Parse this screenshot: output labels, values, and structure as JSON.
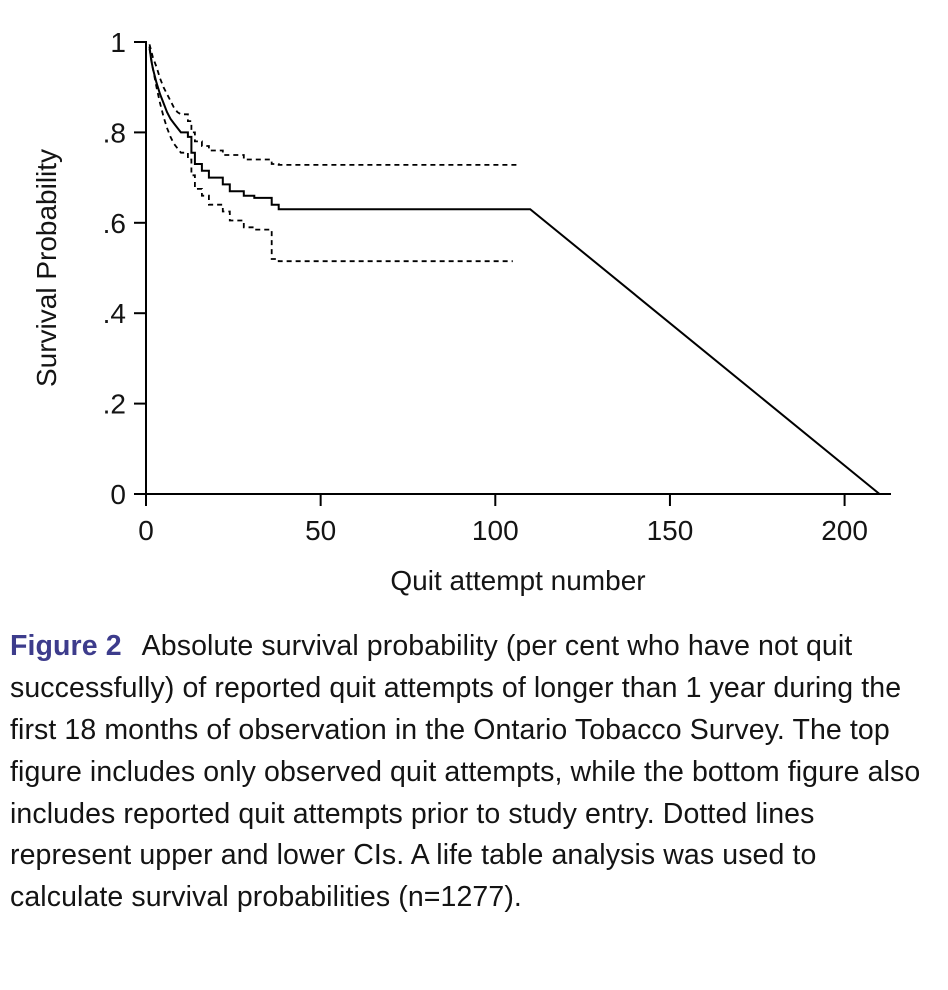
{
  "figure": {
    "accent_color": "#3d3c8c",
    "line_color": "#000000",
    "background_color": "#ffffff"
  },
  "caption": {
    "label": "Figure 2",
    "text": "Absolute survival probability (per cent who have not quit successfully) of reported quit attempts of longer than 1 year during the first 18 months of observation in the Ontario Tobacco Survey. The top figure includes only observed quit attempts, while the bottom figure also includes reported quit attempts prior to study entry. Dotted lines represent upper and lower CIs. A life table analysis was used to calculate survival probabilities (n=1277)."
  },
  "chart_data": {
    "type": "line",
    "title": "",
    "xlabel": "Quit attempt number",
    "ylabel": "Survival Probability",
    "xlim": [
      0,
      213
    ],
    "ylim": [
      0,
      1
    ],
    "xticks": [
      0,
      50,
      100,
      150,
      200
    ],
    "xtick_labels": [
      "0",
      "50",
      "100",
      "150",
      "200"
    ],
    "yticks": [
      0,
      0.2,
      0.4,
      0.6,
      0.8,
      1
    ],
    "ytick_labels": [
      "0",
      ".2",
      ".4",
      ".6",
      ".8",
      "1"
    ],
    "grid": false,
    "legend": "none",
    "series": [
      {
        "name": "survival-estimate",
        "style": "solid",
        "points": [
          [
            1,
            0.99
          ],
          [
            1.5,
            0.96
          ],
          [
            2,
            0.94
          ],
          [
            3,
            0.91
          ],
          [
            4,
            0.885
          ],
          [
            5,
            0.865
          ],
          [
            6,
            0.845
          ],
          [
            7,
            0.83
          ],
          [
            8,
            0.82
          ],
          [
            9,
            0.81
          ],
          [
            10,
            0.8
          ],
          [
            12,
            0.8
          ],
          [
            12,
            0.79
          ],
          [
            13,
            0.79
          ],
          [
            13,
            0.755
          ],
          [
            14,
            0.755
          ],
          [
            14,
            0.73
          ],
          [
            16,
            0.73
          ],
          [
            16,
            0.715
          ],
          [
            18,
            0.715
          ],
          [
            18,
            0.7
          ],
          [
            22,
            0.7
          ],
          [
            22,
            0.685
          ],
          [
            24,
            0.685
          ],
          [
            24,
            0.67
          ],
          [
            28,
            0.67
          ],
          [
            28,
            0.66
          ],
          [
            31,
            0.66
          ],
          [
            31,
            0.655
          ],
          [
            36,
            0.655
          ],
          [
            36,
            0.64
          ],
          [
            38,
            0.64
          ],
          [
            38,
            0.63
          ],
          [
            40,
            0.63
          ],
          [
            110,
            0.63
          ],
          [
            210,
            0
          ]
        ]
      },
      {
        "name": "upper-ci",
        "style": "dashed",
        "points": [
          [
            1,
            0.995
          ],
          [
            2,
            0.965
          ],
          [
            3,
            0.945
          ],
          [
            4,
            0.92
          ],
          [
            5,
            0.9
          ],
          [
            6,
            0.885
          ],
          [
            7,
            0.87
          ],
          [
            8,
            0.855
          ],
          [
            9,
            0.845
          ],
          [
            10,
            0.84
          ],
          [
            12,
            0.84
          ],
          [
            12,
            0.825
          ],
          [
            13,
            0.825
          ],
          [
            13,
            0.8
          ],
          [
            14,
            0.8
          ],
          [
            14,
            0.78
          ],
          [
            16,
            0.78
          ],
          [
            16,
            0.77
          ],
          [
            18,
            0.77
          ],
          [
            18,
            0.76
          ],
          [
            22,
            0.76
          ],
          [
            22,
            0.75
          ],
          [
            24,
            0.75
          ],
          [
            28,
            0.75
          ],
          [
            28,
            0.74
          ],
          [
            31,
            0.74
          ],
          [
            36,
            0.74
          ],
          [
            36,
            0.73
          ],
          [
            38,
            0.73
          ],
          [
            38,
            0.728
          ],
          [
            107,
            0.728
          ]
        ]
      },
      {
        "name": "lower-ci",
        "style": "dashed",
        "points": [
          [
            1,
            0.985
          ],
          [
            2,
            0.94
          ],
          [
            3,
            0.9
          ],
          [
            4,
            0.865
          ],
          [
            5,
            0.835
          ],
          [
            6,
            0.81
          ],
          [
            7,
            0.79
          ],
          [
            8,
            0.775
          ],
          [
            9,
            0.765
          ],
          [
            10,
            0.755
          ],
          [
            12,
            0.755
          ],
          [
            12,
            0.74
          ],
          [
            13,
            0.74
          ],
          [
            13,
            0.705
          ],
          [
            14,
            0.705
          ],
          [
            14,
            0.675
          ],
          [
            16,
            0.675
          ],
          [
            16,
            0.66
          ],
          [
            18,
            0.66
          ],
          [
            18,
            0.64
          ],
          [
            22,
            0.64
          ],
          [
            22,
            0.625
          ],
          [
            24,
            0.625
          ],
          [
            24,
            0.605
          ],
          [
            28,
            0.605
          ],
          [
            28,
            0.59
          ],
          [
            31,
            0.59
          ],
          [
            31,
            0.585
          ],
          [
            36,
            0.585
          ],
          [
            36,
            0.52
          ],
          [
            38,
            0.52
          ],
          [
            38,
            0.515
          ],
          [
            40,
            0.515
          ],
          [
            105,
            0.515
          ]
        ]
      }
    ]
  }
}
